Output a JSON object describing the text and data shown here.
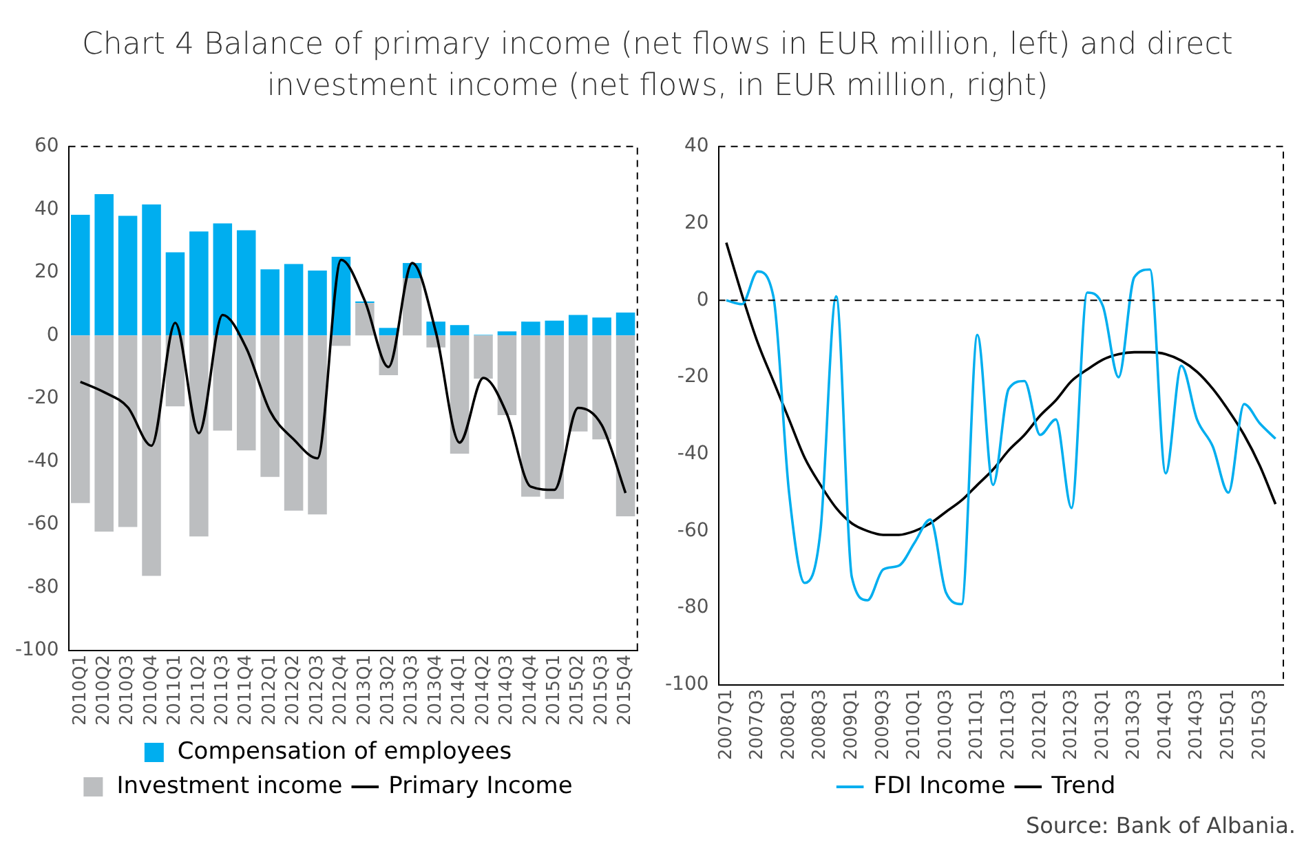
{
  "chart_data": [
    {
      "type": "bar",
      "title": "Chart 4 Balance of primary income (net flows in EUR million, left) and direct investment income (net flows, in EUR million, right)",
      "categories": [
        "2010Q1",
        "2010Q2",
        "2010Q3",
        "2010Q4",
        "2011Q1",
        "2011Q2",
        "2011Q3",
        "2011Q4",
        "2012Q1",
        "2012Q2",
        "2012Q3",
        "2012Q4",
        "2013Q1",
        "2013Q2",
        "2013Q3",
        "2013Q4",
        "2014Q1",
        "2014Q2",
        "2014Q3",
        "2014Q4",
        "2015Q1",
        "2015Q2",
        "2015Q3",
        "2015Q4"
      ],
      "series": [
        {
          "name": "Compensation of employees",
          "type": "bar",
          "color": "#00aeef",
          "values": [
            38.3,
            44.9,
            38,
            41.6,
            26.4,
            33,
            35.6,
            33.4,
            21,
            22.7,
            20.6,
            25,
            0.5,
            2.4,
            4.9,
            4.4,
            3.3,
            0.2,
            1.3,
            4.4,
            4.7,
            6.5,
            5.7,
            7.3
          ]
        },
        {
          "name": "Investment income",
          "type": "bar",
          "color": "#bcbec0",
          "values": [
            -53.2,
            -62.3,
            -60.8,
            -76.3,
            -22.5,
            -63.8,
            -30.2,
            -36.5,
            -44.9,
            -55.6,
            -56.8,
            -3.3,
            10.3,
            -12.6,
            18.1,
            -3.8,
            -37.5,
            -13.7,
            -25.3,
            -51.2,
            -51.9,
            -30.5,
            -33,
            -57.4
          ]
        },
        {
          "name": "Primary Income",
          "type": "line",
          "color": "#000000",
          "values": [
            -14.7,
            -18,
            -22.8,
            -35,
            4,
            -31,
            6.5,
            -4,
            -24,
            -33,
            -39,
            24,
            11,
            -10,
            23,
            1,
            -34,
            -13.5,
            -25,
            -48,
            -49,
            -23,
            -28.5,
            -50
          ]
        }
      ],
      "stacked": true,
      "ylim": [
        -100,
        60
      ],
      "yticks": [
        -100,
        -80,
        -60,
        -40,
        -20,
        0,
        20,
        40,
        60
      ],
      "legend": "bottom",
      "marker": "none"
    },
    {
      "type": "line",
      "categories": [
        "2007Q1",
        null,
        "2007Q3",
        null,
        "2008Q1",
        null,
        "2008Q3",
        null,
        "2009Q1",
        null,
        "2009Q3",
        null,
        "2010Q1",
        null,
        "2010Q3",
        null,
        "2011Q1",
        null,
        "2011Q3",
        null,
        "2012Q1",
        null,
        "2012Q3",
        null,
        "2013Q1",
        null,
        "2013Q3",
        null,
        "2014Q1",
        null,
        "2014Q3",
        null,
        "2015Q1",
        null,
        "2015Q3",
        null
      ],
      "series": [
        {
          "name": "FDI Income",
          "color": "#00aeef",
          "values": [
            0,
            -1,
            7.5,
            1,
            -50,
            -73.5,
            -60,
            1,
            -72,
            -78,
            -70,
            -69,
            -63,
            -57,
            -76,
            -79,
            -9,
            -48,
            -23,
            -21,
            -35,
            -31,
            -54,
            2,
            -1.5,
            -20,
            6,
            8,
            -45,
            -17,
            -31,
            -38,
            -50,
            -27,
            -32,
            -36
          ]
        },
        {
          "name": "Trend",
          "color": "#000000",
          "values": [
            15,
            1.4,
            -11,
            -21,
            -31,
            -41,
            -48,
            -54,
            -58,
            -60,
            -61,
            -61,
            -60,
            -58,
            -55,
            -52,
            -48,
            -44,
            -39,
            -35,
            -30,
            -26,
            -21,
            -18,
            -15.4,
            -14,
            -13.5,
            -13.5,
            -14,
            -15.7,
            -18.6,
            -23,
            -28.6,
            -35,
            -43,
            -53
          ]
        }
      ],
      "ylim": [
        -100,
        40
      ],
      "yticks": [
        -100,
        -80,
        -60,
        -40,
        -20,
        0,
        20,
        40
      ],
      "legend": "bottom",
      "marker": "none",
      "ref_lines": [
        {
          "axis": "y",
          "value": 0,
          "line_style": "dashed",
          "color": "#000000"
        }
      ],
      "annotations": [
        "Source: Bank of Albania."
      ]
    }
  ]
}
